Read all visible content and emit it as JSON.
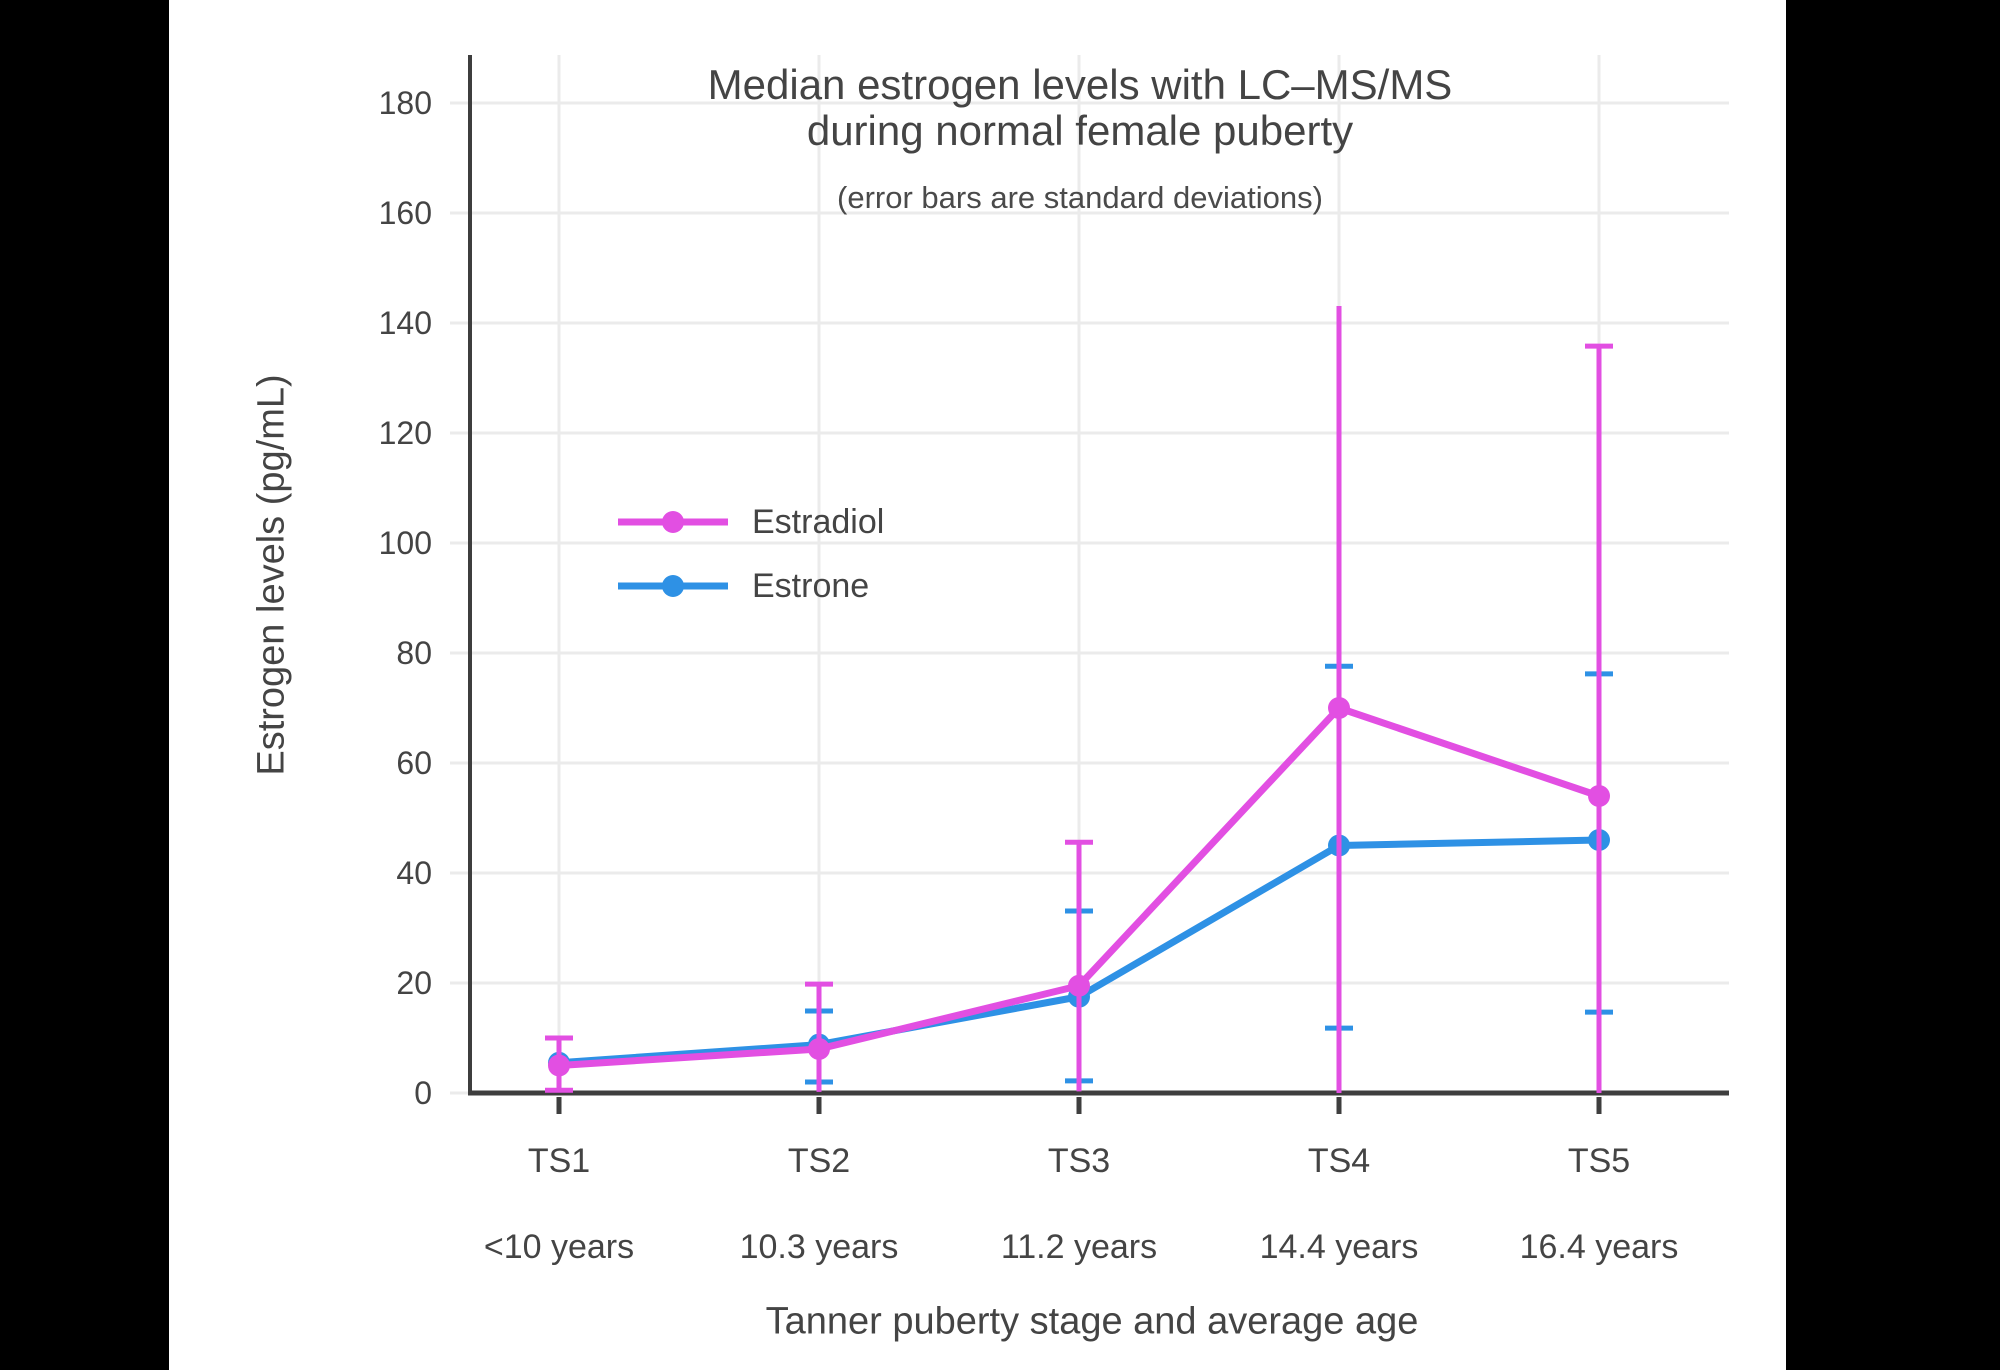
{
  "chart_data": {
    "type": "line",
    "title": "Median estrogen levels with LC–MS/MS",
    "title_line2": "during normal female puberty",
    "subtitle": "(error bars are standard deviations)",
    "xlabel": "Tanner puberty stage and average age",
    "ylabel": "Estrogen levels (pg/mL)",
    "categories": [
      "TS1",
      "TS2",
      "TS3",
      "TS4",
      "TS5"
    ],
    "category_sublabels": [
      "<10 years",
      "10.3 years",
      "11.2 years",
      "14.4 years",
      "16.4 years"
    ],
    "yticks": [
      0,
      20,
      40,
      60,
      80,
      100,
      120,
      140,
      160,
      180
    ],
    "ylim": [
      0,
      189
    ],
    "grid": true,
    "legend_position": "inside-upper-left",
    "colors": {
      "estradiol": "#E24FE2",
      "estrone": "#2E91E5",
      "axis": "#3E3E3E",
      "gridline": "#EBEBEB",
      "text": "#444444"
    },
    "series": [
      {
        "name": "Estradiol",
        "color": "#E24FE2",
        "values": [
          5,
          8,
          19.5,
          70,
          54
        ],
        "err_top": [
          10,
          19.8,
          45.6,
          143.1,
          135.8
        ],
        "err_bot": [
          0.5,
          0.2,
          0.3,
          0,
          0
        ],
        "cap_top": [
          true,
          true,
          true,
          false,
          true
        ],
        "cap_bot": [
          true,
          false,
          false,
          false,
          false
        ]
      },
      {
        "name": "Estrone",
        "color": "#2E91E5",
        "values": [
          5.5,
          8.8,
          17.5,
          45,
          46
        ],
        "err_top": [
          null,
          14.9,
          33.1,
          77.6,
          76.2
        ],
        "err_bot": [
          null,
          2.0,
          2.2,
          11.8,
          14.7
        ],
        "cap_top": [
          false,
          true,
          true,
          true,
          true
        ],
        "cap_bot": [
          false,
          true,
          true,
          true,
          true
        ]
      }
    ]
  }
}
